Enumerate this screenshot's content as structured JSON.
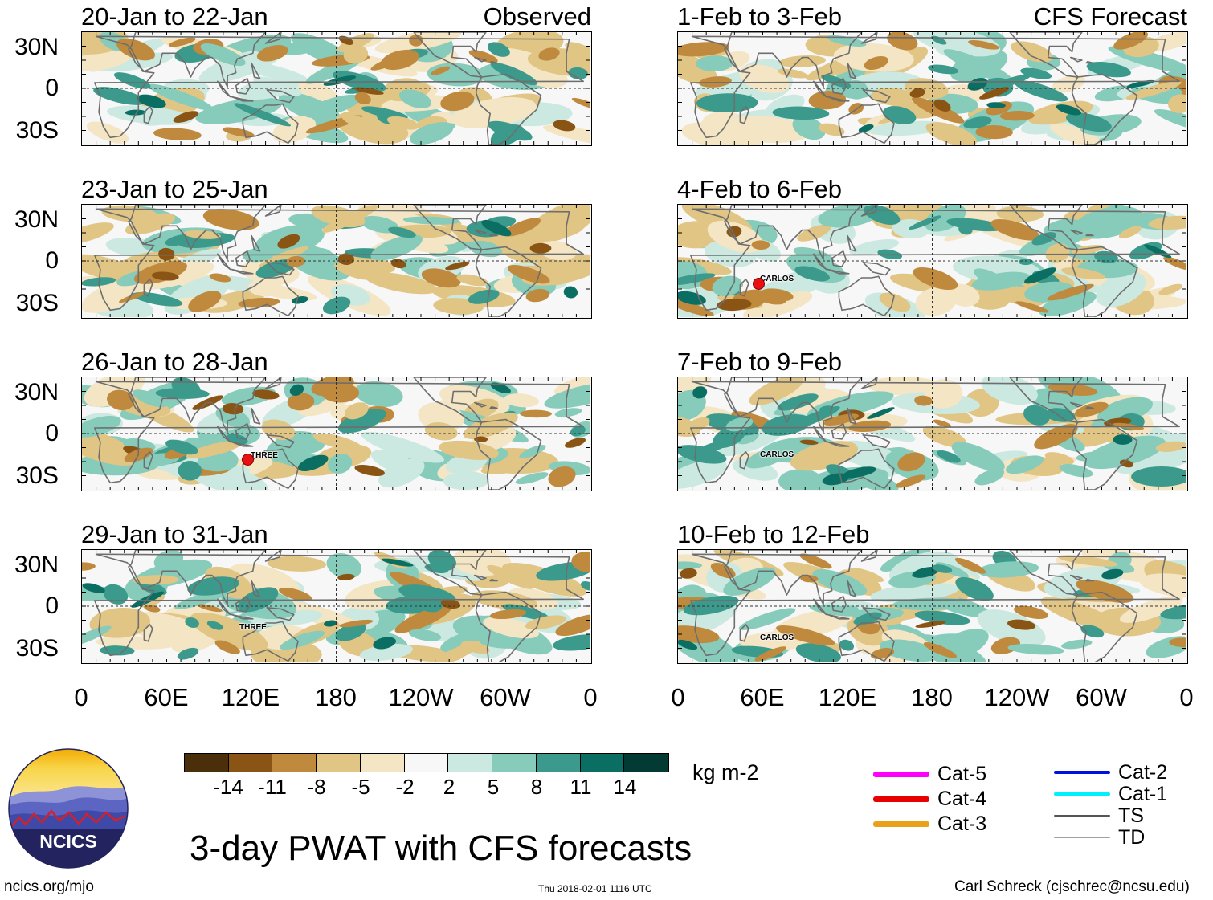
{
  "colors": {
    "neg4": "#4b2f0a",
    "neg3": "#8a5514",
    "neg2": "#bf8a3e",
    "neg1": "#e1c585",
    "neg0": "#f4e5c4",
    "zero": "#f7f7f7",
    "pos0": "#cce9e1",
    "pos1": "#87cbbb",
    "pos2": "#3b9a8b",
    "pos3": "#0b6e62",
    "pos4": "#033a33",
    "coast": "#6e6e6e"
  },
  "labels": {
    "observed": "Observed",
    "forecast": "CFS Forecast",
    "lat": [
      "30N",
      "0",
      "30S"
    ],
    "lon": [
      "0",
      "60E",
      "120E",
      "180",
      "120W",
      "60W",
      "0"
    ]
  },
  "panels": [
    {
      "title": "20-Jan to 22-Jan",
      "seed": 11,
      "storm": null
    },
    {
      "title": "23-Jan to 25-Jan",
      "seed": 23,
      "storm": null
    },
    {
      "title": "26-Jan to 28-Jan",
      "seed": 37,
      "storm": {
        "name": "THREE",
        "marker": true
      }
    },
    {
      "title": "29-Jan to 31-Jan",
      "seed": 41,
      "storm": {
        "name": "THREE",
        "marker": false
      }
    },
    {
      "title": "1-Feb to 3-Feb",
      "seed": 53,
      "storm": null
    },
    {
      "title": "4-Feb to 6-Feb",
      "seed": 67,
      "storm": {
        "name": "CARLOS",
        "marker": true
      }
    },
    {
      "title": "7-Feb to 9-Feb",
      "seed": 71,
      "storm": {
        "name": "CARLOS",
        "marker": false
      }
    },
    {
      "title": "10-Feb to 12-Feb",
      "seed": 89,
      "storm": {
        "name": "CARLOS",
        "marker": false
      }
    }
  ],
  "colorbar": {
    "ticks": [
      "-14",
      "-11",
      "-8",
      "-5",
      "-2",
      "2",
      "5",
      "8",
      "11",
      "14"
    ],
    "units": "kg m-2"
  },
  "legend": [
    {
      "label": "Cat-5",
      "color": "#ff00ff",
      "kind": "thick"
    },
    {
      "label": "Cat-4",
      "color": "#e80000",
      "kind": "thick"
    },
    {
      "label": "Cat-3",
      "color": "#e9a11a",
      "kind": "thick"
    },
    {
      "label": "Cat-2",
      "color": "#0010e0",
      "kind": "medium"
    },
    {
      "label": "Cat-1",
      "color": "#00f0ff",
      "kind": "medium"
    },
    {
      "label": "TS",
      "color": "#555555",
      "kind": "thin"
    },
    {
      "label": "TD",
      "color": "#a0a0a0",
      "kind": "hair"
    }
  ],
  "logo": {
    "text": "NCICS"
  },
  "footer": {
    "main_title": "3-day PWAT with CFS forecasts",
    "url": "ncics.org/mjo",
    "timestamp": "Thu 2018-02-01 1116 UTC",
    "credit": "Carl Schreck (cjschrec@ncsu.edu)"
  }
}
